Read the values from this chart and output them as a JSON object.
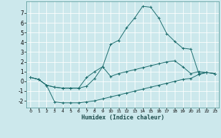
{
  "xlabel": "Humidex (Indice chaleur)",
  "background_color": "#cce8ec",
  "grid_color": "#b0d8de",
  "line_color": "#1a6b6b",
  "xlim": [
    -0.5,
    23.5
  ],
  "ylim": [
    -2.7,
    8.2
  ],
  "xticks": [
    0,
    1,
    2,
    3,
    4,
    5,
    6,
    7,
    8,
    9,
    10,
    11,
    12,
    13,
    14,
    15,
    16,
    17,
    18,
    19,
    20,
    21,
    22,
    23
  ],
  "yticks": [
    -2,
    -1,
    0,
    1,
    2,
    3,
    4,
    5,
    6,
    7
  ],
  "series": [
    {
      "x": [
        0,
        1,
        2,
        3,
        4,
        5,
        6,
        7,
        8,
        9,
        10,
        11,
        12,
        13,
        14,
        15,
        16,
        17,
        18,
        19,
        20,
        21,
        22,
        23
      ],
      "y": [
        0.4,
        0.2,
        -0.4,
        -2.1,
        -2.2,
        -2.2,
        -2.2,
        -2.1,
        -2.0,
        -1.8,
        -1.6,
        -1.4,
        -1.2,
        -1.0,
        -0.8,
        -0.6,
        -0.4,
        -0.2,
        0.0,
        0.2,
        0.3,
        0.7,
        0.9,
        0.8
      ]
    },
    {
      "x": [
        0,
        1,
        2,
        3,
        4,
        5,
        6,
        7,
        8,
        9,
        10,
        11,
        12,
        13,
        14,
        15,
        16,
        17,
        18,
        19,
        20,
        21,
        22,
        23
      ],
      "y": [
        0.4,
        0.2,
        -0.4,
        -0.6,
        -0.7,
        -0.7,
        -0.7,
        -0.5,
        0.3,
        1.5,
        0.5,
        0.8,
        1.0,
        1.2,
        1.4,
        1.6,
        1.8,
        2.0,
        2.1,
        1.5,
        0.8,
        1.0,
        0.9,
        0.8
      ]
    },
    {
      "x": [
        0,
        1,
        2,
        3,
        4,
        5,
        6,
        7,
        8,
        9,
        10,
        11,
        12,
        13,
        14,
        15,
        16,
        17,
        18,
        19,
        20,
        21,
        22,
        23
      ],
      "y": [
        0.4,
        0.2,
        -0.4,
        -0.6,
        -0.7,
        -0.7,
        -0.7,
        0.4,
        1.0,
        1.5,
        3.8,
        4.2,
        5.5,
        6.5,
        7.7,
        7.6,
        6.5,
        4.9,
        4.1,
        3.4,
        3.3,
        0.8,
        0.9,
        0.8
      ]
    }
  ]
}
